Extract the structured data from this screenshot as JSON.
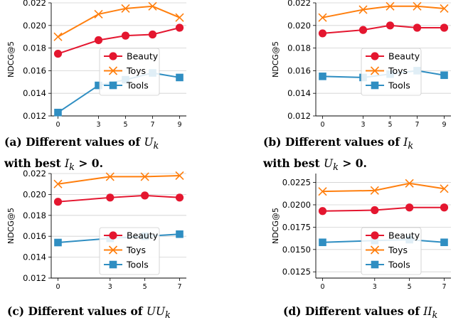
{
  "colors": {
    "beauty": "#e4162f",
    "toys": "#ff7f0e",
    "tools": "#2f8ec2"
  },
  "captions": [
    {
      "line1": "(a) Different values of ",
      "var": "U",
      "sub": "k",
      "line2_pre": "with best ",
      "line2_var": "I",
      "line2_sub": "k",
      "line2_post": " > 0."
    },
    {
      "line1": "(b) Different values of ",
      "var": "I",
      "sub": "k",
      "line2_pre": "with best ",
      "line2_var": "U",
      "line2_sub": "k",
      "line2_post": " > 0."
    },
    {
      "line1": "(c) Different values of ",
      "var": "UU",
      "sub": "k"
    },
    {
      "line1": "(d) Different values of ",
      "var": "II",
      "sub": "k"
    }
  ],
  "chart_data": [
    {
      "type": "line",
      "ylabel": "NDCG@5",
      "x": [
        0,
        3,
        5,
        7,
        9
      ],
      "x_tick_labels": [
        "0",
        "3",
        "5",
        "7",
        "9"
      ],
      "ylim": [
        0.012,
        0.022
      ],
      "y_ticks": [
        0.012,
        0.014,
        0.016,
        0.018,
        0.02,
        0.022
      ],
      "y_tick_labels": [
        "0.012",
        "0.014",
        "0.016",
        "0.018",
        "0.020",
        "0.022"
      ],
      "grid": "horizontal",
      "legend": "center-right",
      "series": [
        {
          "name": "Beauty",
          "marker": "circle",
          "values": [
            0.0175,
            0.0187,
            0.0191,
            0.0192,
            0.0198
          ]
        },
        {
          "name": "Toys",
          "marker": "x",
          "values": [
            0.019,
            0.021,
            0.0215,
            0.0217,
            0.0207
          ]
        },
        {
          "name": "Tools",
          "marker": "square",
          "values": [
            0.0123,
            0.0147,
            0.0152,
            0.0158,
            0.0154
          ]
        }
      ]
    },
    {
      "type": "line",
      "ylabel": "NDCG@5",
      "x": [
        0,
        3,
        5,
        7,
        9
      ],
      "x_tick_labels": [
        "0",
        "3",
        "5",
        "7",
        "9"
      ],
      "ylim": [
        0.012,
        0.022
      ],
      "y_ticks": [
        0.012,
        0.014,
        0.016,
        0.018,
        0.02,
        0.022
      ],
      "y_tick_labels": [
        "0.012",
        "0.014",
        "0.016",
        "0.018",
        "0.020",
        "0.022"
      ],
      "grid": "horizontal",
      "legend": "center-right",
      "series": [
        {
          "name": "Beauty",
          "marker": "circle",
          "values": [
            0.0193,
            0.0196,
            0.02,
            0.0198,
            0.0198
          ]
        },
        {
          "name": "Toys",
          "marker": "x",
          "values": [
            0.0207,
            0.0214,
            0.0217,
            0.0217,
            0.0215
          ]
        },
        {
          "name": "Tools",
          "marker": "square",
          "values": [
            0.0155,
            0.0154,
            0.0157,
            0.016,
            0.0156
          ]
        }
      ]
    },
    {
      "type": "line",
      "ylabel": "NDCG@5",
      "x": [
        0,
        3,
        5,
        7
      ],
      "x_tick_labels": [
        "0",
        "3",
        "5",
        "7"
      ],
      "ylim": [
        0.012,
        0.022
      ],
      "y_ticks": [
        0.012,
        0.014,
        0.016,
        0.018,
        0.02,
        0.022
      ],
      "y_tick_labels": [
        "0.012",
        "0.014",
        "0.016",
        "0.018",
        "0.020",
        "0.022"
      ],
      "grid": "horizontal",
      "legend": "center-right",
      "series": [
        {
          "name": "Beauty",
          "marker": "circle",
          "values": [
            0.0193,
            0.0197,
            0.0199,
            0.0197
          ]
        },
        {
          "name": "Toys",
          "marker": "x",
          "values": [
            0.021,
            0.0217,
            0.0217,
            0.0218
          ]
        },
        {
          "name": "Tools",
          "marker": "square",
          "values": [
            0.0154,
            0.0158,
            0.016,
            0.0162
          ]
        }
      ]
    },
    {
      "type": "line",
      "ylabel": "NDCG@5",
      "x": [
        0,
        3,
        5,
        7
      ],
      "x_tick_labels": [
        "0",
        "3",
        "5",
        "7"
      ],
      "ylim": [
        0.0118,
        0.0235
      ],
      "y_ticks": [
        0.0125,
        0.015,
        0.0175,
        0.02,
        0.0225
      ],
      "y_tick_labels": [
        "0.0125",
        "0.0150",
        "0.0175",
        "0.0200",
        "0.0225"
      ],
      "grid": "horizontal",
      "legend": "center-right",
      "series": [
        {
          "name": "Beauty",
          "marker": "circle",
          "values": [
            0.0193,
            0.0194,
            0.0197,
            0.0197
          ]
        },
        {
          "name": "Toys",
          "marker": "x",
          "values": [
            0.0215,
            0.0216,
            0.0224,
            0.0218
          ]
        },
        {
          "name": "Tools",
          "marker": "square",
          "values": [
            0.0158,
            0.016,
            0.0161,
            0.0158
          ]
        }
      ]
    }
  ]
}
